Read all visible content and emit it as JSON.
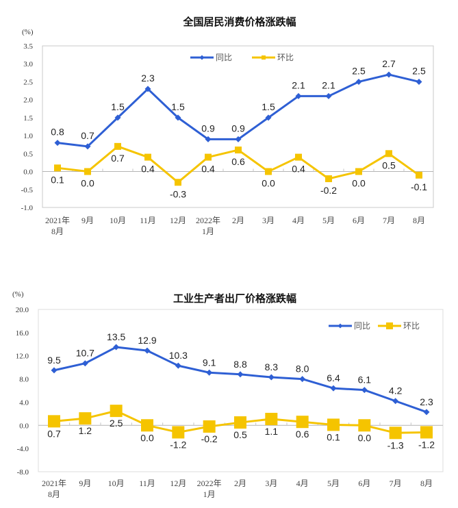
{
  "chart_data": [
    {
      "type": "line",
      "title": "全国居民消费价格涨跌幅",
      "unit_label": "(%)",
      "xlabel": "",
      "ylabel": "(%)",
      "ylim": [
        -1.0,
        3.5
      ],
      "yticks": [
        "3.5",
        "3.0",
        "2.5",
        "2.0",
        "1.5",
        "1.0",
        "0.5",
        "0.0",
        "-0.5",
        "-1.0"
      ],
      "ytick_values": [
        3.5,
        3.0,
        2.5,
        2.0,
        1.5,
        1.0,
        0.5,
        0.0,
        -0.5,
        -1.0
      ],
      "categories": [
        [
          "2021年",
          "8月"
        ],
        [
          "9月"
        ],
        [
          "10月"
        ],
        [
          "11月"
        ],
        [
          "12月"
        ],
        [
          "2022年",
          "1月"
        ],
        [
          "2月"
        ],
        [
          "3月"
        ],
        [
          "4月"
        ],
        [
          "5月"
        ],
        [
          "6月"
        ],
        [
          "7月"
        ],
        [
          "8月"
        ]
      ],
      "legend_position": "top-center",
      "grid": false,
      "series": [
        {
          "name": "同比",
          "color": "#2e5fd4",
          "marker": "diamond",
          "values": [
            0.8,
            0.7,
            1.5,
            2.3,
            1.5,
            0.9,
            0.9,
            1.5,
            2.1,
            2.1,
            2.5,
            2.7,
            2.5
          ],
          "labels": [
            "0.8",
            "0.7",
            "1.5",
            "2.3",
            "1.5",
            "0.9",
            "0.9",
            "1.5",
            "2.1",
            "2.1",
            "2.5",
            "2.7",
            "2.5"
          ],
          "label_position": "above"
        },
        {
          "name": "环比",
          "color": "#f5c400",
          "marker": "square-small",
          "values": [
            0.1,
            0.0,
            0.7,
            0.4,
            -0.3,
            0.4,
            0.6,
            0.0,
            0.4,
            -0.2,
            0.0,
            0.5,
            -0.1
          ],
          "labels": [
            "0.1",
            "0.0",
            "0.7",
            "0.4",
            "-0.3",
            "0.4",
            "0.6",
            "0.0",
            "0.4",
            "-0.2",
            "0.0",
            "0.5",
            "-0.1"
          ],
          "label_position": "below"
        }
      ]
    },
    {
      "type": "line",
      "title": "工业生产者出厂价格涨跌幅",
      "unit_label": "(%)",
      "xlabel": "",
      "ylabel": "(%)",
      "ylim": [
        -8.0,
        20.0
      ],
      "yticks": [
        "20.0",
        "16.0",
        "12.0",
        "8.0",
        "4.0",
        "0.0",
        "-4.0",
        "-8.0"
      ],
      "ytick_values": [
        20,
        16,
        12,
        8,
        4,
        0,
        -4,
        -8
      ],
      "categories": [
        [
          "2021年",
          "8月"
        ],
        [
          "9月"
        ],
        [
          "10月"
        ],
        [
          "11月"
        ],
        [
          "12月"
        ],
        [
          "2022年",
          "1月"
        ],
        [
          "2月"
        ],
        [
          "3月"
        ],
        [
          "4月"
        ],
        [
          "5月"
        ],
        [
          "6月"
        ],
        [
          "7月"
        ],
        [
          "8月"
        ]
      ],
      "legend_position": "top-right",
      "grid": false,
      "series": [
        {
          "name": "同比",
          "color": "#2e5fd4",
          "marker": "diamond",
          "values": [
            9.5,
            10.7,
            13.5,
            12.9,
            10.3,
            9.1,
            8.8,
            8.3,
            8.0,
            6.4,
            6.1,
            4.2,
            2.3
          ],
          "labels": [
            "9.5",
            "10.7",
            "13.5",
            "12.9",
            "10.3",
            "9.1",
            "8.8",
            "8.3",
            "8.0",
            "6.4",
            "6.1",
            "4.2",
            "2.3"
          ],
          "label_position": "above"
        },
        {
          "name": "环比",
          "color": "#f5c400",
          "marker": "square",
          "values": [
            0.7,
            1.2,
            2.5,
            0.0,
            -1.2,
            -0.2,
            0.5,
            1.1,
            0.6,
            0.1,
            0.0,
            -1.3,
            -1.2
          ],
          "labels": [
            "0.7",
            "1.2",
            "2.5",
            "0.0",
            "-1.2",
            "-0.2",
            "0.5",
            "1.1",
            "0.6",
            "0.1",
            "0.0",
            "-1.3",
            "-1.2"
          ],
          "label_position": "below"
        }
      ]
    }
  ]
}
